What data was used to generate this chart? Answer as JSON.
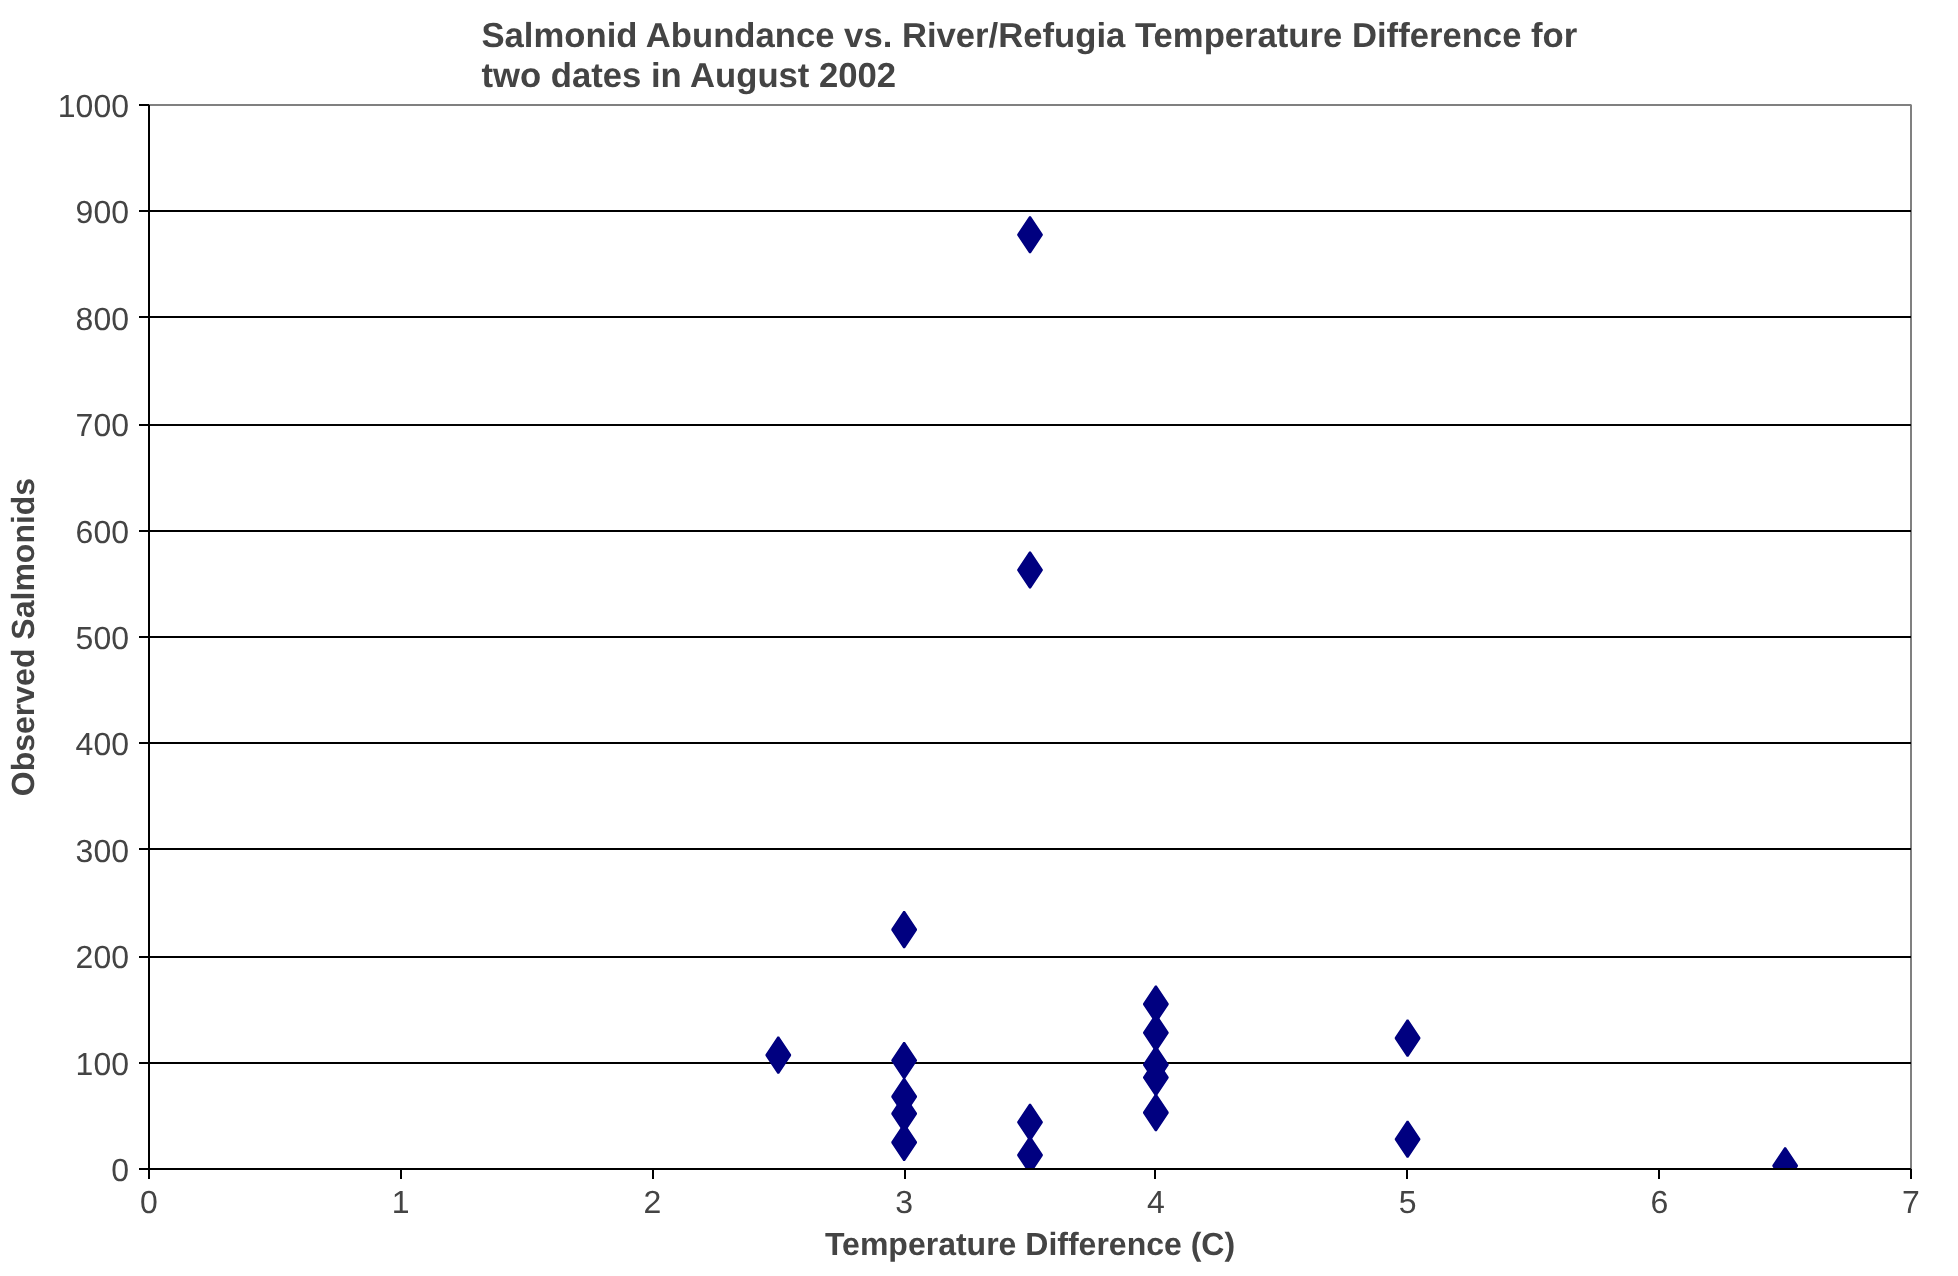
{
  "chart_data": {
    "type": "scatter",
    "title": "Salmonid Abundance vs. River/Refugia Temperature Difference for\ntwo dates in August 2002",
    "xlabel": "Temperature Difference (C)",
    "ylabel": "Observed Salmonids",
    "x": [
      2.5,
      3,
      3,
      3,
      3,
      3,
      3.5,
      3.5,
      3.5,
      3.5,
      4,
      4,
      4,
      4,
      4,
      5,
      5,
      6.5
    ],
    "values": [
      107,
      225,
      102,
      68,
      52,
      25,
      878,
      563,
      44,
      13,
      155,
      128,
      98,
      86,
      53,
      123,
      28,
      3
    ],
    "color": "#000080",
    "marker": "diamond",
    "xlim": [
      0,
      7
    ],
    "ylim": [
      0,
      1000
    ],
    "xticks": [
      0,
      1,
      2,
      3,
      4,
      5,
      6,
      7
    ],
    "yticks": [
      0,
      100,
      200,
      300,
      400,
      500,
      600,
      700,
      800,
      900,
      1000
    ],
    "grid": "y"
  }
}
